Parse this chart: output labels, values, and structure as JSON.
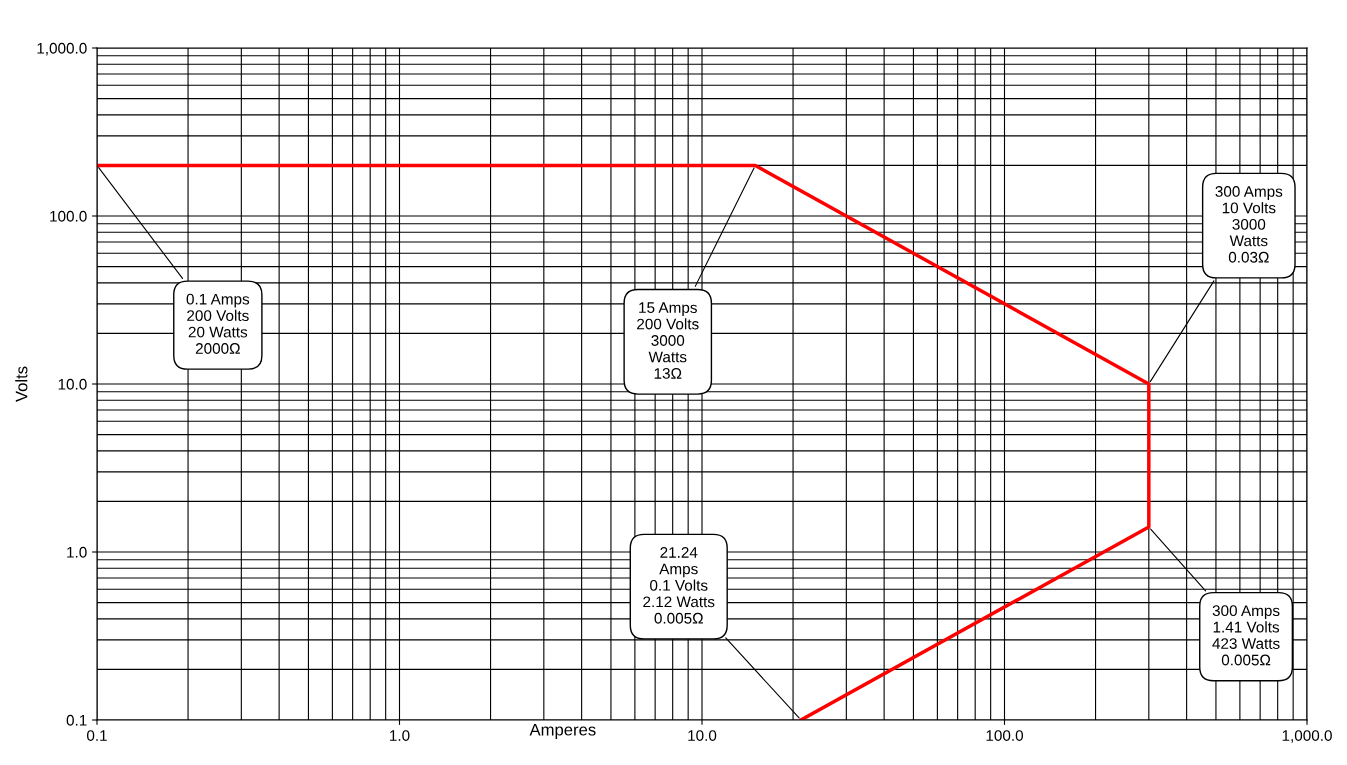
{
  "chart_data": {
    "type": "line",
    "xlabel": "Amperes",
    "ylabel": "Volts",
    "log": "xy",
    "series": [
      {
        "color": "#ff0000",
        "x": [
          0.1,
          15,
          300,
          300,
          21.24
        ],
        "values": [
          200,
          200,
          10,
          1.41,
          0.1
        ]
      }
    ],
    "xlim": [
      0.1,
      1000
    ],
    "ylim": [
      0.1,
      1000
    ],
    "xticks": [
      {
        "value": 0.1,
        "label": "0.1"
      },
      {
        "value": 1,
        "label": "1.0"
      },
      {
        "value": 10,
        "label": "10.0"
      },
      {
        "value": 100,
        "label": "100.0"
      },
      {
        "value": 1000,
        "label": "1,000.0"
      }
    ],
    "yticks": [
      {
        "value": 0.1,
        "label": "0.1"
      },
      {
        "value": 1,
        "label": "1.0"
      },
      {
        "value": 10,
        "label": "10.0"
      },
      {
        "value": 100,
        "label": "100.0"
      },
      {
        "value": 1000,
        "label": "1,000.0"
      }
    ],
    "grid": true,
    "marker": "none",
    "line_style": "solid",
    "annotations": [
      {
        "text": "0.1 Amps\n200 Volts\n20 Watts\n2000Ω",
        "x": 0.1,
        "y": 200
      },
      {
        "text": "15 Amps\n200 Volts\n3000\nWatts\n13Ω",
        "x": 15,
        "y": 200
      },
      {
        "text": "300 Amps\n10 Volts\n3000\nWatts\n0.03Ω",
        "x": 300,
        "y": 10
      },
      {
        "text": "300 Amps\n1.41 Volts\n423 Watts\n0.005Ω",
        "x": 300,
        "y": 1.41
      },
      {
        "text": "21.24\nAmps\n0.1 Volts\n2.12 Watts\n0.005Ω",
        "x": 21.24,
        "y": 0.1
      }
    ]
  }
}
